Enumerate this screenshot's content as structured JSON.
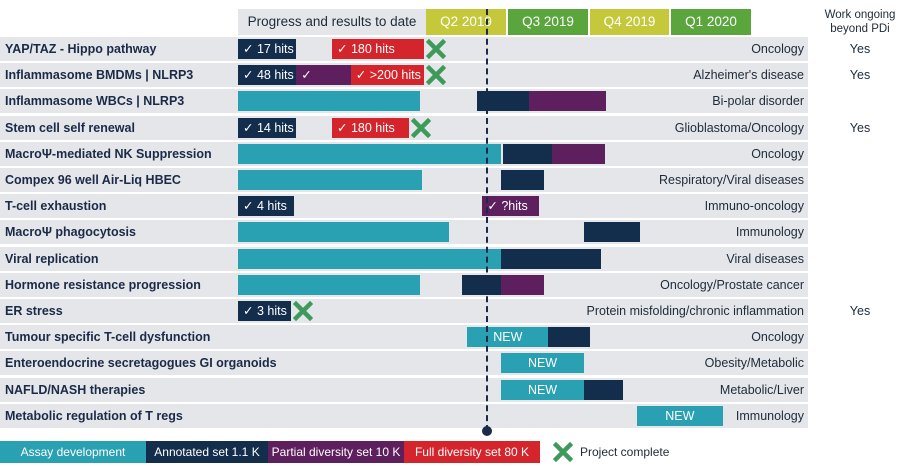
{
  "header": {
    "progress_label": "Progress and results to date",
    "quarters": [
      {
        "label": "Q2 2019",
        "color": "#c5c83a"
      },
      {
        "label": "Q3 2019",
        "color": "#5aa63c"
      },
      {
        "label": "Q4 2019",
        "color": "#c5c83a"
      },
      {
        "label": "Q1 2020",
        "color": "#5aa63c"
      }
    ],
    "work_ongoing_line1": "Work ongoing",
    "work_ongoing_line2": "beyond PDi"
  },
  "colors": {
    "assay": "#2aa1b3",
    "annotated": "#132d4c",
    "partial": "#5e1f5e",
    "full": "#d4252c",
    "complete": "#3e9a5a",
    "row_shade": "#e4e6e9"
  },
  "chart_data": {
    "type": "gantt",
    "categories": [
      "YAP/TAZ - Hippo pathway",
      "Inflammasome BMDMs | NLRP3",
      "Inflammasome WBCs | NLRP3",
      "Stem cell self renewal",
      "MacroΨ-mediated NK Suppression",
      "Compex 96 well Air-Liq HBEC",
      "T-cell exhaustion",
      "MacroΨ phagocytosis",
      "Viral replication",
      "Hormone resistance progression",
      "ER stress",
      "Tumour specific T-cell dysfunction",
      "Enteroendocrine secretagogues GI organoids",
      "NAFLD/NASH therapies",
      "Metabolic regulation of T regs"
    ],
    "rows": [
      {
        "label": "YAP/TAZ - Hippo pathway",
        "area": "Oncology",
        "work": "Yes",
        "complete": true,
        "bars": [
          {
            "type": "annotated",
            "text": "✓ 17 hits",
            "start": 0.0,
            "end": 0.31
          },
          {
            "type": "full",
            "text": "✓ 180 hits",
            "start": 0.5,
            "end": 0.99
          }
        ]
      },
      {
        "label": "Inflammasome BMDMs | NLRP3",
        "area": "Alzheimer's disease",
        "work": "Yes",
        "complete": true,
        "bars": [
          {
            "type": "annotated",
            "text": "✓ 48 hits",
            "start": 0.0,
            "end": 0.31
          },
          {
            "type": "partial",
            "text": "✓",
            "start": 0.31,
            "end": 0.6
          },
          {
            "type": "full",
            "text": "✓ >200 hits",
            "start": 0.6,
            "end": 0.99
          }
        ]
      },
      {
        "label": "Inflammasome WBCs | NLRP3",
        "area": "Bi-polar disorder",
        "work": "",
        "complete": false,
        "bars": [
          {
            "type": "assay",
            "text": "",
            "start": 0.0,
            "end": 0.97
          },
          {
            "type": "annotated",
            "text": "",
            "start": 1.27,
            "end": 1.55
          },
          {
            "type": "partial",
            "text": "",
            "start": 1.55,
            "end": 1.96
          }
        ]
      },
      {
        "label": "Stem cell self renewal",
        "area": "Glioblastoma/Oncology",
        "work": "Yes",
        "complete": true,
        "bars": [
          {
            "type": "annotated",
            "text": "✓ 14 hits",
            "start": 0.0,
            "end": 0.31
          },
          {
            "type": "full",
            "text": "✓ 180 hits",
            "start": 0.5,
            "end": 0.91
          }
        ]
      },
      {
        "label": "MacroΨ-mediated NK Suppression",
        "area": "Oncology",
        "work": "",
        "complete": false,
        "bars": [
          {
            "type": "assay",
            "text": "",
            "start": 0.0,
            "end": 1.4
          },
          {
            "type": "annotated",
            "text": "",
            "start": 1.41,
            "end": 1.67
          },
          {
            "type": "partial",
            "text": "",
            "start": 1.67,
            "end": 1.95
          }
        ]
      },
      {
        "label": "Compex 96 well Air-Liq HBEC",
        "area": "Respiratory/Viral diseases",
        "work": "",
        "complete": false,
        "bars": [
          {
            "type": "assay",
            "text": "",
            "start": 0.0,
            "end": 0.98
          },
          {
            "type": "annotated",
            "text": "",
            "start": 1.4,
            "end": 1.63
          }
        ]
      },
      {
        "label": "T-cell exhaustion",
        "area": "Immuno-oncology",
        "work": "",
        "complete": false,
        "bars": [
          {
            "type": "annotated",
            "text": "✓ 4 hits",
            "start": 0.0,
            "end": 0.3
          },
          {
            "type": "partial",
            "text": "✓ ?hits",
            "start": 1.3,
            "end": 1.6
          }
        ]
      },
      {
        "label": "MacroΨ phagocytosis",
        "area": "Immunology",
        "work": "",
        "complete": false,
        "bars": [
          {
            "type": "assay",
            "text": "",
            "start": 0.0,
            "end": 1.12
          },
          {
            "type": "annotated",
            "text": "",
            "start": 1.84,
            "end": 2.14
          }
        ]
      },
      {
        "label": "Viral replication",
        "area": "Viral diseases",
        "work": "",
        "complete": false,
        "bars": [
          {
            "type": "assay",
            "text": "",
            "start": 0.0,
            "end": 1.4
          },
          {
            "type": "annotated",
            "text": "",
            "start": 1.4,
            "end": 1.93
          }
        ]
      },
      {
        "label": "Hormone resistance progression",
        "area": "Oncology/Prostate cancer",
        "work": "",
        "complete": false,
        "bars": [
          {
            "type": "assay",
            "text": "",
            "start": 0.0,
            "end": 0.97
          },
          {
            "type": "annotated",
            "text": "",
            "start": 1.19,
            "end": 1.4
          },
          {
            "type": "partial",
            "text": "",
            "start": 1.4,
            "end": 1.63
          }
        ]
      },
      {
        "label": "ER stress",
        "area": "Protein misfolding/chronic inflammation",
        "work": "Yes",
        "complete": true,
        "bars": [
          {
            "type": "annotated",
            "text": "✓ 3 hits",
            "start": 0.0,
            "end": 0.28
          }
        ]
      },
      {
        "label": "Tumour specific T-cell dysfunction",
        "area": "Oncology",
        "work": "",
        "complete": false,
        "bars": [
          {
            "type": "assay",
            "text": "NEW",
            "start": 1.22,
            "end": 1.65
          },
          {
            "type": "annotated",
            "text": "",
            "start": 1.65,
            "end": 1.87
          }
        ]
      },
      {
        "label": "Enteroendocrine secretagogues GI organoids",
        "area": "Obesity/Metabolic",
        "work": "",
        "complete": false,
        "bars": [
          {
            "type": "assay",
            "text": "NEW",
            "start": 1.4,
            "end": 1.84
          }
        ]
      },
      {
        "label": "NAFLD/NASH therapies",
        "area": "Metabolic/Liver",
        "work": "",
        "complete": false,
        "bars": [
          {
            "type": "assay",
            "text": "NEW",
            "start": 1.4,
            "end": 1.84
          },
          {
            "type": "annotated",
            "text": "",
            "start": 1.84,
            "end": 2.05
          }
        ]
      },
      {
        "label": "Metabolic regulation of T regs",
        "area": "Immunology",
        "work": "",
        "complete": false,
        "bars": [
          {
            "type": "assay",
            "text": "NEW",
            "start": 2.12,
            "end": 2.58
          }
        ]
      }
    ]
  },
  "legend": {
    "assay": "Assay development",
    "annotated": "Annotated set 1.1 K",
    "partial": "Partial diversity set 10 K",
    "full": "Full diversity set 80 K",
    "complete": "Project complete"
  }
}
